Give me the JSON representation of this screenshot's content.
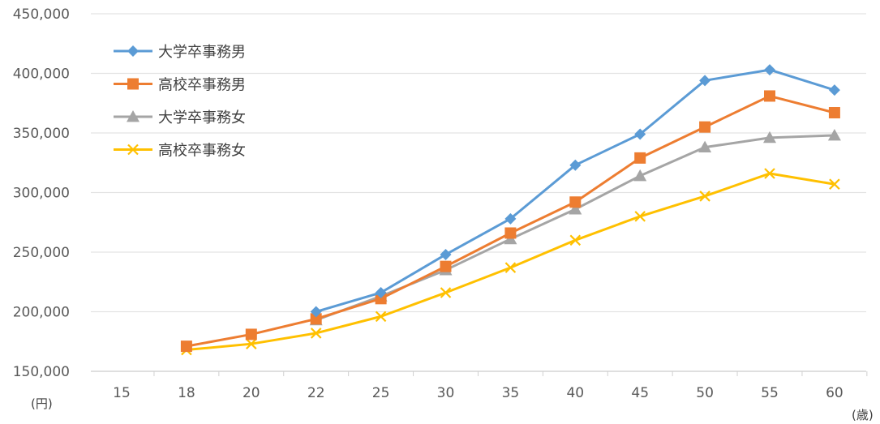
{
  "chart_data": {
    "type": "line",
    "title": "",
    "xlabel": "(歳)",
    "ylabel": "(円)",
    "categories": [
      "15",
      "18",
      "20",
      "22",
      "25",
      "30",
      "35",
      "40",
      "45",
      "50",
      "55",
      "60"
    ],
    "ylim": [
      150000,
      450000
    ],
    "yticks": [
      "150,000",
      "200,000",
      "250,000",
      "300,000",
      "350,000",
      "400,000",
      "450,000"
    ],
    "ytick_values": [
      150000,
      200000,
      250000,
      300000,
      350000,
      400000,
      450000
    ],
    "grid": true,
    "legend_position": "top-left",
    "series": [
      {
        "name": "大学卒事務男",
        "marker": "diamond",
        "color": "#5b9bd5",
        "values": [
          null,
          null,
          null,
          200000,
          216000,
          248000,
          278000,
          323000,
          349000,
          394000,
          403000,
          386000
        ]
      },
      {
        "name": "高校卒事務男",
        "marker": "square",
        "color": "#ed7d31",
        "values": [
          null,
          171000,
          181000,
          194000,
          211000,
          238000,
          266000,
          292000,
          329000,
          355000,
          381000,
          367000
        ]
      },
      {
        "name": "大学卒事務女",
        "marker": "triangle",
        "color": "#a5a5a5",
        "values": [
          null,
          null,
          null,
          193000,
          213000,
          235000,
          261000,
          286000,
          314000,
          338000,
          346000,
          348000
        ]
      },
      {
        "name": "高校卒事務女",
        "marker": "x",
        "color": "#ffc000",
        "values": [
          null,
          168000,
          173000,
          182000,
          196000,
          216000,
          237000,
          260000,
          280000,
          297000,
          316000,
          307000
        ]
      }
    ]
  }
}
